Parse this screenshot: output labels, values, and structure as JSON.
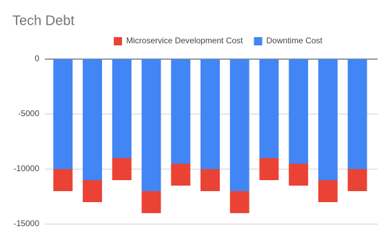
{
  "chart_data": {
    "type": "bar",
    "stacked": true,
    "title": "Tech Debt",
    "categories": [
      null,
      null,
      null,
      null,
      null,
      null,
      null,
      null,
      null,
      null,
      null
    ],
    "series": [
      {
        "name": "Microservice Development Cost",
        "color": "#ea4335",
        "values": [
          -2000,
          -2000,
          -2000,
          -2000,
          -2000,
          -2000,
          -2000,
          -2000,
          -2000,
          -2000,
          -2000
        ]
      },
      {
        "name": "Downtime Cost",
        "color": "#4285f4",
        "values": [
          -10000,
          -11000,
          -9000,
          -12000,
          -9500,
          -10000,
          -12000,
          -9000,
          -9500,
          -11000,
          -10000
        ]
      }
    ],
    "ylim": [
      -15000,
      0
    ],
    "yticks": [
      0,
      -5000,
      -10000,
      -15000
    ],
    "grid": true,
    "legend": "top"
  }
}
